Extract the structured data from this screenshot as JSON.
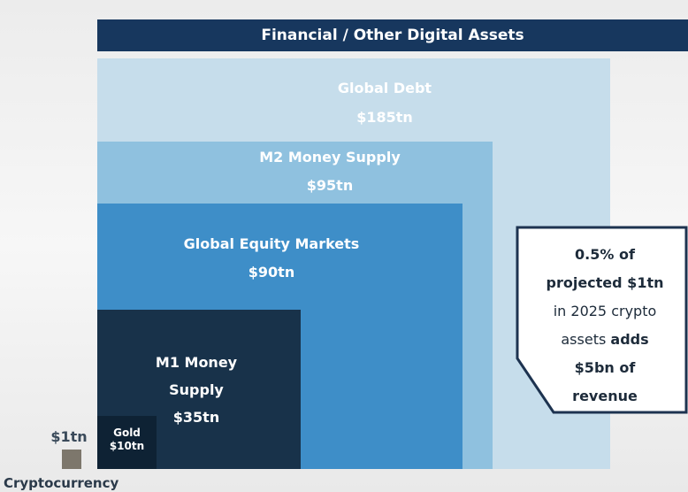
{
  "header": {
    "title": "Financial / Other Digital Assets"
  },
  "boxes": [
    {
      "label": "Global Debt",
      "amount": "$185tn"
    },
    {
      "label": "M2 Money Supply",
      "amount": "$95tn"
    },
    {
      "label": "Global Equity Markets",
      "amount": "$90tn"
    },
    {
      "label": "M1 Money Supply",
      "amount": "$35tn"
    },
    {
      "label": "Gold",
      "amount": "$10tn"
    }
  ],
  "crypto": {
    "amount": "$1tn",
    "label": "Cryptocurrency"
  },
  "callout": {
    "lines": [
      [
        {
          "text": "0.5% of",
          "bold": true
        }
      ],
      [
        {
          "text": "projected $1tn",
          "bold": true
        }
      ],
      [
        {
          "text": "in 2025 crypto",
          "bold": false
        }
      ],
      [
        {
          "text": "assets ",
          "bold": false
        },
        {
          "text": "adds",
          "bold": true
        }
      ],
      [
        {
          "text": "$5bn of",
          "bold": true
        }
      ],
      [
        {
          "text": "revenue",
          "bold": true
        }
      ]
    ]
  }
}
